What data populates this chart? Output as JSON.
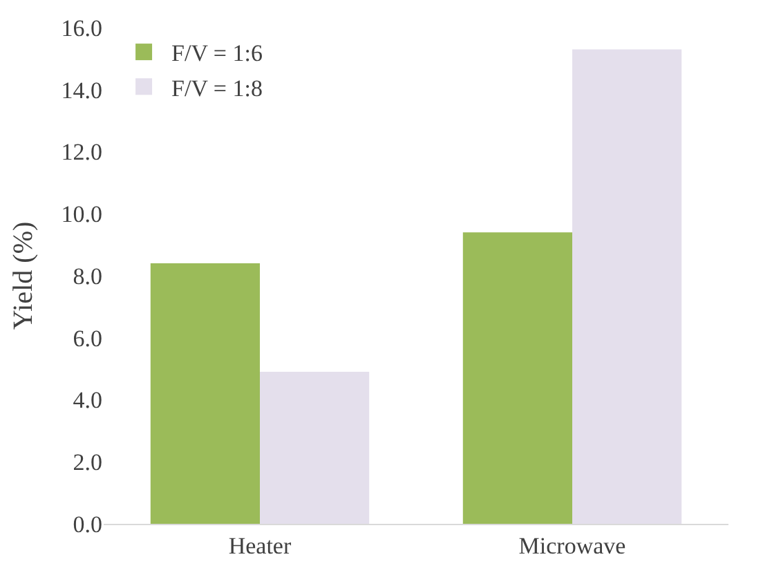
{
  "chart_data": {
    "type": "bar",
    "ylabel": "Yield (%)",
    "categories": [
      "Heater",
      "Microwave"
    ],
    "series": [
      {
        "name": "F/V = 1:6",
        "color": "#9bbb59",
        "values": [
          8.4,
          9.4
        ]
      },
      {
        "name": "F/V = 1:8",
        "color": "#e4dfec",
        "values": [
          4.9,
          15.3
        ]
      }
    ],
    "ylim": [
      0,
      16
    ],
    "yticks": [
      {
        "value": 0,
        "label": "0.0"
      },
      {
        "value": 2,
        "label": "2.0"
      },
      {
        "value": 4,
        "label": "4.0"
      },
      {
        "value": 6,
        "label": "6.0"
      },
      {
        "value": 8,
        "label": "8.0"
      },
      {
        "value": 10,
        "label": "10.0"
      },
      {
        "value": 12,
        "label": "12.0"
      },
      {
        "value": 14,
        "label": "14.0"
      },
      {
        "value": 16,
        "label": "16.0"
      }
    ],
    "legend": "top left"
  }
}
